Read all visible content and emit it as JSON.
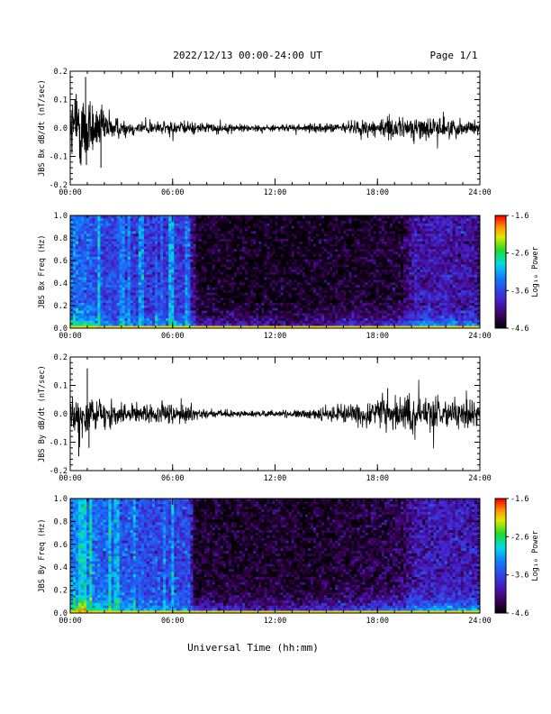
{
  "header": {
    "title": "2022/12/13  00:00-24:00 UT",
    "page": "Page 1/1"
  },
  "xlabel": "Universal Time (hh:mm)",
  "colors": {
    "trace": "#000000",
    "spectrogram_map": "rainbow (black-purple-blue-cyan-green-yellow-orange-red)"
  },
  "chart_data": [
    {
      "type": "line",
      "id": "bx-dbdt",
      "ylabel": "JBS Bx dB/dt (nT/sec)",
      "xlim": [
        0,
        24
      ],
      "ylim": [
        -0.2,
        0.2
      ],
      "x_tick_labels": [
        "00:00",
        "06:00",
        "12:00",
        "18:00",
        "24:00"
      ],
      "y_tick_labels": [
        "0.2",
        "0.1",
        "0.0",
        "-0.1",
        "-0.2"
      ],
      "x_hours": [
        0,
        0.5,
        1,
        1.5,
        2,
        3,
        4,
        5,
        6,
        7,
        8,
        10,
        12,
        14,
        16,
        17,
        18,
        19,
        20,
        21,
        22,
        23,
        24
      ],
      "amplitude_envelope": [
        0.1,
        0.12,
        0.13,
        0.07,
        0.06,
        0.025,
        0.022,
        0.02,
        0.02,
        0.02,
        0.015,
        0.012,
        0.01,
        0.012,
        0.015,
        0.025,
        0.03,
        0.03,
        0.035,
        0.035,
        0.03,
        0.025,
        0.02
      ],
      "peaks": [
        {
          "x": 0.9,
          "y": 0.18
        },
        {
          "x": 0.95,
          "y": -0.13
        },
        {
          "x": 1.8,
          "y": -0.14
        },
        {
          "x": 0.35,
          "y": 0.12
        }
      ]
    },
    {
      "type": "heatmap",
      "id": "bx-freq",
      "ylabel": "JBS Bx Freq (Hz)",
      "xlim": [
        0,
        24
      ],
      "ylim": [
        0,
        1.0
      ],
      "x_tick_labels": [
        "00:00",
        "06:00",
        "12:00",
        "18:00",
        "24:00"
      ],
      "y_tick_labels": [
        "1.0",
        "0.8",
        "0.6",
        "0.4",
        "0.2",
        "0.0"
      ],
      "colorbar": {
        "label": "Log₁₀ Power",
        "range": [
          -4.6,
          -1.6
        ],
        "tick_labels": [
          "-1.6",
          "-2.6",
          "-3.6",
          "-4.6"
        ]
      },
      "x_hours": [
        0,
        2,
        4,
        6,
        7,
        7.3,
        10,
        14,
        16,
        19.5,
        20,
        22,
        24
      ],
      "background_power": [
        -3.3,
        -3.6,
        -3.7,
        -3.7,
        -3.75,
        -4.45,
        -4.5,
        -4.5,
        -4.45,
        -4.4,
        -4.0,
        -3.95,
        -4.05
      ],
      "low_freq_power": [
        -2.3,
        -2.9,
        -3.1,
        -3.1,
        -3.2,
        -3.4,
        -3.6,
        -3.7,
        -3.4,
        -3.3,
        -2.9,
        -2.9,
        -3.0
      ]
    },
    {
      "type": "line",
      "id": "by-dbdt",
      "ylabel": "JBS By dB/dt (nT/sec)",
      "xlim": [
        0,
        24
      ],
      "ylim": [
        -0.2,
        0.2
      ],
      "x_tick_labels": [
        "00:00",
        "06:00",
        "12:00",
        "18:00",
        "24:00"
      ],
      "y_tick_labels": [
        "0.2",
        "0.1",
        "0.0",
        "-0.1",
        "-0.2"
      ],
      "x_hours": [
        0,
        0.5,
        1,
        1.5,
        2,
        3,
        4,
        5,
        6,
        7,
        8,
        10,
        12,
        14,
        16,
        17,
        18,
        19,
        20,
        21,
        22,
        23,
        24
      ],
      "amplitude_envelope": [
        0.06,
        0.07,
        0.06,
        0.045,
        0.04,
        0.035,
        0.03,
        0.03,
        0.03,
        0.025,
        0.012,
        0.01,
        0.01,
        0.015,
        0.025,
        0.035,
        0.045,
        0.05,
        0.05,
        0.05,
        0.045,
        0.04,
        0.04
      ],
      "peaks": [
        {
          "x": 1.0,
          "y": 0.16
        },
        {
          "x": 0.5,
          "y": -0.15
        },
        {
          "x": 1.1,
          "y": -0.12
        },
        {
          "x": 18.6,
          "y": 0.09
        }
      ]
    },
    {
      "type": "heatmap",
      "id": "by-freq",
      "ylabel": "JBS By Freq (Hz)",
      "xlim": [
        0,
        24
      ],
      "ylim": [
        0,
        1.0
      ],
      "x_tick_labels": [
        "00:00",
        "06:00",
        "12:00",
        "18:00",
        "24:00"
      ],
      "y_tick_labels": [
        "1.0",
        "0.8",
        "0.6",
        "0.4",
        "0.2",
        "0.0"
      ],
      "colorbar": {
        "label": "Log₁₀ Power",
        "range": [
          -4.6,
          -1.6
        ],
        "tick_labels": [
          "-1.6",
          "-2.6",
          "-3.6",
          "-4.6"
        ]
      },
      "x_hours": [
        0,
        2,
        4,
        6,
        7,
        7.3,
        10,
        14,
        16,
        19.5,
        20,
        22,
        24
      ],
      "background_power": [
        -3.2,
        -3.4,
        -3.55,
        -3.6,
        -3.6,
        -4.45,
        -4.45,
        -4.45,
        -4.4,
        -4.3,
        -4.0,
        -3.9,
        -3.95
      ],
      "low_freq_power": [
        -2.0,
        -2.6,
        -2.9,
        -3.0,
        -3.1,
        -3.4,
        -3.5,
        -3.5,
        -3.2,
        -3.0,
        -2.7,
        -2.6,
        -2.7
      ]
    }
  ]
}
